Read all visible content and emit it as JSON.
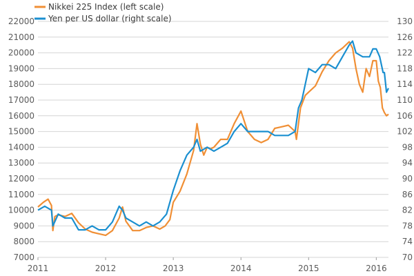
{
  "chart_data": {
    "type": "line",
    "grid": false,
    "legend_placement": "top-left",
    "x_range": [
      2011.0,
      2016.18
    ],
    "x_ticks": [
      {
        "value": 2011,
        "label": "2011"
      },
      {
        "value": 2012,
        "label": "2012"
      },
      {
        "value": 2013,
        "label": "2013"
      },
      {
        "value": 2014,
        "label": "2014"
      },
      {
        "value": 2015,
        "label": "2015"
      },
      {
        "value": 2016,
        "label": "2016"
      }
    ],
    "left_axis": {
      "range": [
        7000,
        22000
      ],
      "ticks": [
        "7000",
        "8000",
        "9000",
        "10000",
        "11000",
        "12000",
        "13000",
        "14000",
        "15000",
        "16000",
        "17000",
        "18000",
        "19000",
        "20000",
        "21000",
        "22000"
      ]
    },
    "right_axis": {
      "range": [
        70,
        130
      ],
      "ticks": [
        "70",
        "74",
        "78",
        "82",
        "86",
        "90",
        "94",
        "98",
        "102",
        "106",
        "110",
        "114",
        "118",
        "122",
        "126",
        "130"
      ]
    },
    "series": [
      {
        "name": "Nikkei 225 Index (left scale)",
        "axis": "left",
        "color": "#f08f35",
        "x": [
          2011.0,
          2011.08,
          2011.15,
          2011.2,
          2011.22,
          2011.25,
          2011.3,
          2011.4,
          2011.5,
          2011.6,
          2011.7,
          2011.8,
          2011.9,
          2012.0,
          2012.1,
          2012.2,
          2012.25,
          2012.3,
          2012.4,
          2012.5,
          2012.6,
          2012.7,
          2012.8,
          2012.88,
          2012.95,
          2013.0,
          2013.1,
          2013.2,
          2013.3,
          2013.35,
          2013.4,
          2013.45,
          2013.5,
          2013.55,
          2013.6,
          2013.7,
          2013.8,
          2013.9,
          2014.0,
          2014.1,
          2014.2,
          2014.3,
          2014.4,
          2014.5,
          2014.6,
          2014.7,
          2014.8,
          2014.82,
          2014.88,
          2014.95,
          2015.0,
          2015.1,
          2015.2,
          2015.3,
          2015.4,
          2015.5,
          2015.55,
          2015.6,
          2015.65,
          2015.7,
          2015.75,
          2015.8,
          2015.85,
          2015.9,
          2015.95,
          2016.0,
          2016.03,
          2016.06,
          2016.09,
          2016.12,
          2016.15,
          2016.18
        ],
        "y": [
          10200,
          10500,
          10700,
          10300,
          8700,
          9600,
          9700,
          9600,
          9800,
          9200,
          8800,
          8600,
          8500,
          8400,
          8700,
          9500,
          10200,
          9300,
          8700,
          8700,
          8900,
          9000,
          8800,
          9000,
          9400,
          10500,
          11200,
          12300,
          13800,
          15500,
          14200,
          13500,
          14000,
          13900,
          14000,
          14500,
          14500,
          15500,
          16300,
          15000,
          14500,
          14300,
          14500,
          15200,
          15300,
          15400,
          15000,
          14500,
          16500,
          17300,
          17500,
          17900,
          18800,
          19500,
          20000,
          20300,
          20500,
          20700,
          20300,
          19000,
          18000,
          17500,
          19000,
          18500,
          19500,
          19500,
          18200,
          17800,
          16500,
          16200,
          16000,
          16100
        ]
      },
      {
        "name": "Yen per US dollar (right scale)",
        "axis": "right",
        "color": "#1a8fd0",
        "x": [
          2011.0,
          2011.1,
          2011.2,
          2011.22,
          2011.3,
          2011.4,
          2011.5,
          2011.6,
          2011.7,
          2011.8,
          2011.9,
          2012.0,
          2012.1,
          2012.2,
          2012.25,
          2012.3,
          2012.4,
          2012.5,
          2012.6,
          2012.7,
          2012.8,
          2012.9,
          2013.0,
          2013.1,
          2013.2,
          2013.3,
          2013.35,
          2013.4,
          2013.5,
          2013.6,
          2013.7,
          2013.8,
          2013.9,
          2014.0,
          2014.1,
          2014.2,
          2014.3,
          2014.4,
          2014.5,
          2014.6,
          2014.7,
          2014.8,
          2014.85,
          2014.9,
          2014.95,
          2015.0,
          2015.1,
          2015.2,
          2015.3,
          2015.4,
          2015.5,
          2015.6,
          2015.65,
          2015.7,
          2015.8,
          2015.9,
          2015.95,
          2016.0,
          2016.05,
          2016.1,
          2016.12,
          2016.15,
          2016.18
        ],
        "y": [
          82,
          83,
          82,
          78,
          81,
          80,
          80,
          77,
          77,
          78,
          77,
          77,
          79,
          83,
          82,
          80,
          79,
          78,
          79,
          78,
          79,
          81,
          87,
          92,
          96,
          98,
          100,
          97,
          98,
          97,
          98,
          99,
          102,
          104,
          102,
          102,
          102,
          102,
          101,
          101,
          101,
          102,
          108,
          110,
          114,
          118,
          117,
          119,
          119,
          118,
          121,
          124,
          125,
          122,
          121,
          121,
          123,
          123,
          121,
          117,
          117,
          112,
          113
        ]
      }
    ]
  }
}
